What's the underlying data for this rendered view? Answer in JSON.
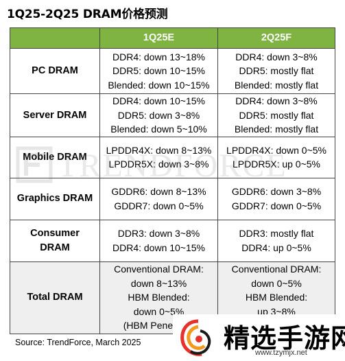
{
  "title": "1Q25-2Q25 DRAM价格预测",
  "table": {
    "header": [
      "",
      "1Q25E",
      "2Q25F"
    ],
    "rows": [
      {
        "label": "PC DRAM",
        "q1": [
          "DDR4: down 13~18%",
          "DDR5: down 10~15%",
          "Blended: down 10~15%"
        ],
        "q2": [
          "DDR4: down 3~8%",
          "DDR5: mostly flat",
          "Blended: mostly flat"
        ]
      },
      {
        "label": "Server DRAM",
        "q1": [
          "DDR4: down 10~15%",
          "DDR5: down 3~8%",
          "Blended: down 5~10%"
        ],
        "q2": [
          "DDR4: down 3~8%",
          "DDR5: mostly flat",
          "Blended: mostly flat"
        ]
      },
      {
        "label": "Mobile DRAM",
        "q1": [
          "LPDDR4X: down 8~13%",
          "LPDDR5X: down 3~8%"
        ],
        "q2": [
          "LPDDR4X: down 0~5%",
          "LPDDR5X: up 0~5%"
        ]
      },
      {
        "label": "Graphics DRAM",
        "q1": [
          "GDDR6: down 8~13%",
          "GDDR7: down 0~5%"
        ],
        "q2": [
          "GDDR6: down 3~8%",
          "GDDR7: down 0~5%"
        ]
      },
      {
        "label_lines": [
          "Consumer",
          "DRAM"
        ],
        "q1": [
          "DDR3: down 3~8%",
          "DDR4: down 10~15%"
        ],
        "q2": [
          "DDR3: mostly flat",
          "DDR4: up 0~5%"
        ]
      },
      {
        "label": "Total DRAM",
        "q1": [
          "Conventional DRAM:",
          "down 8~13%",
          "HBM Blended:",
          "down 0~5%",
          "(HBM Penetratio"
        ],
        "q2": [
          "Conventional DRAM:",
          "down 0~5%",
          "HBM Blended:",
          "up 3~8%"
        ]
      }
    ]
  },
  "watermark": "TRENDFORCE",
  "source": "Source: TrendForce, March 2025",
  "logo": {
    "text": "精选手游网",
    "url": "www.tzymjx.net"
  },
  "colors": {
    "header_bg": "#7fb342",
    "total_row_bg": "#efefef",
    "border": "#444444"
  }
}
